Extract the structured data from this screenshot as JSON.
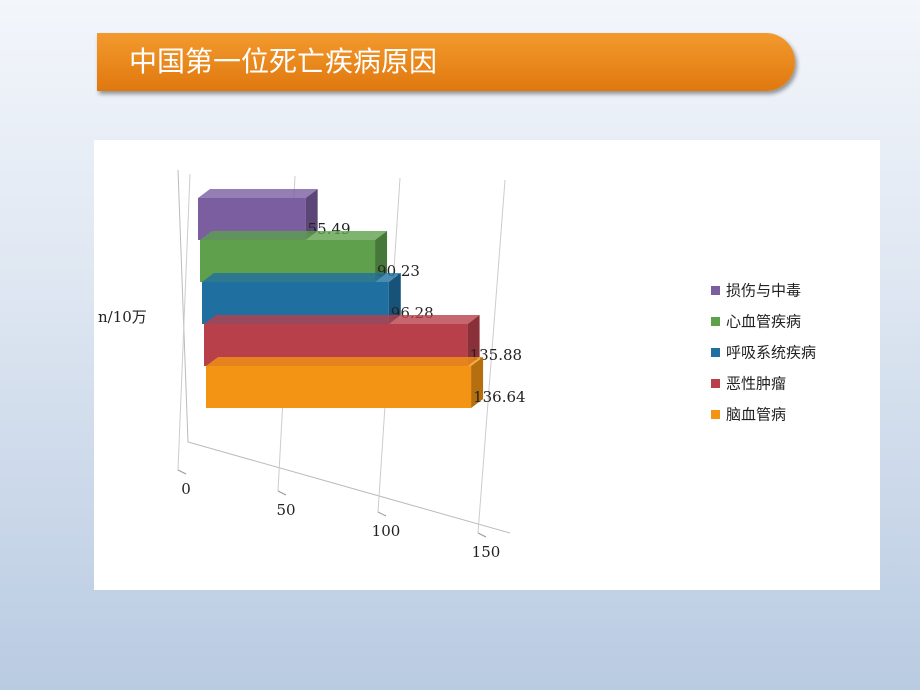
{
  "title": "中国第一位死亡疾病原因",
  "chart_data": {
    "type": "bar3d",
    "y_label": "n/10万",
    "categories": [
      "损伤与中毒",
      "心血管疾病",
      "呼吸系统疾病",
      "恶性肿瘤",
      "脑血管病"
    ],
    "values": [
      55.49,
      90.23,
      96.28,
      135.88,
      136.64
    ],
    "colors": [
      "#7b5ea0",
      "#5ea04c",
      "#1f6fa0",
      "#b8404a",
      "#f39414"
    ],
    "xlim": [
      0,
      150
    ],
    "xticks": [
      0,
      50,
      100,
      150
    ],
    "grid": true
  }
}
